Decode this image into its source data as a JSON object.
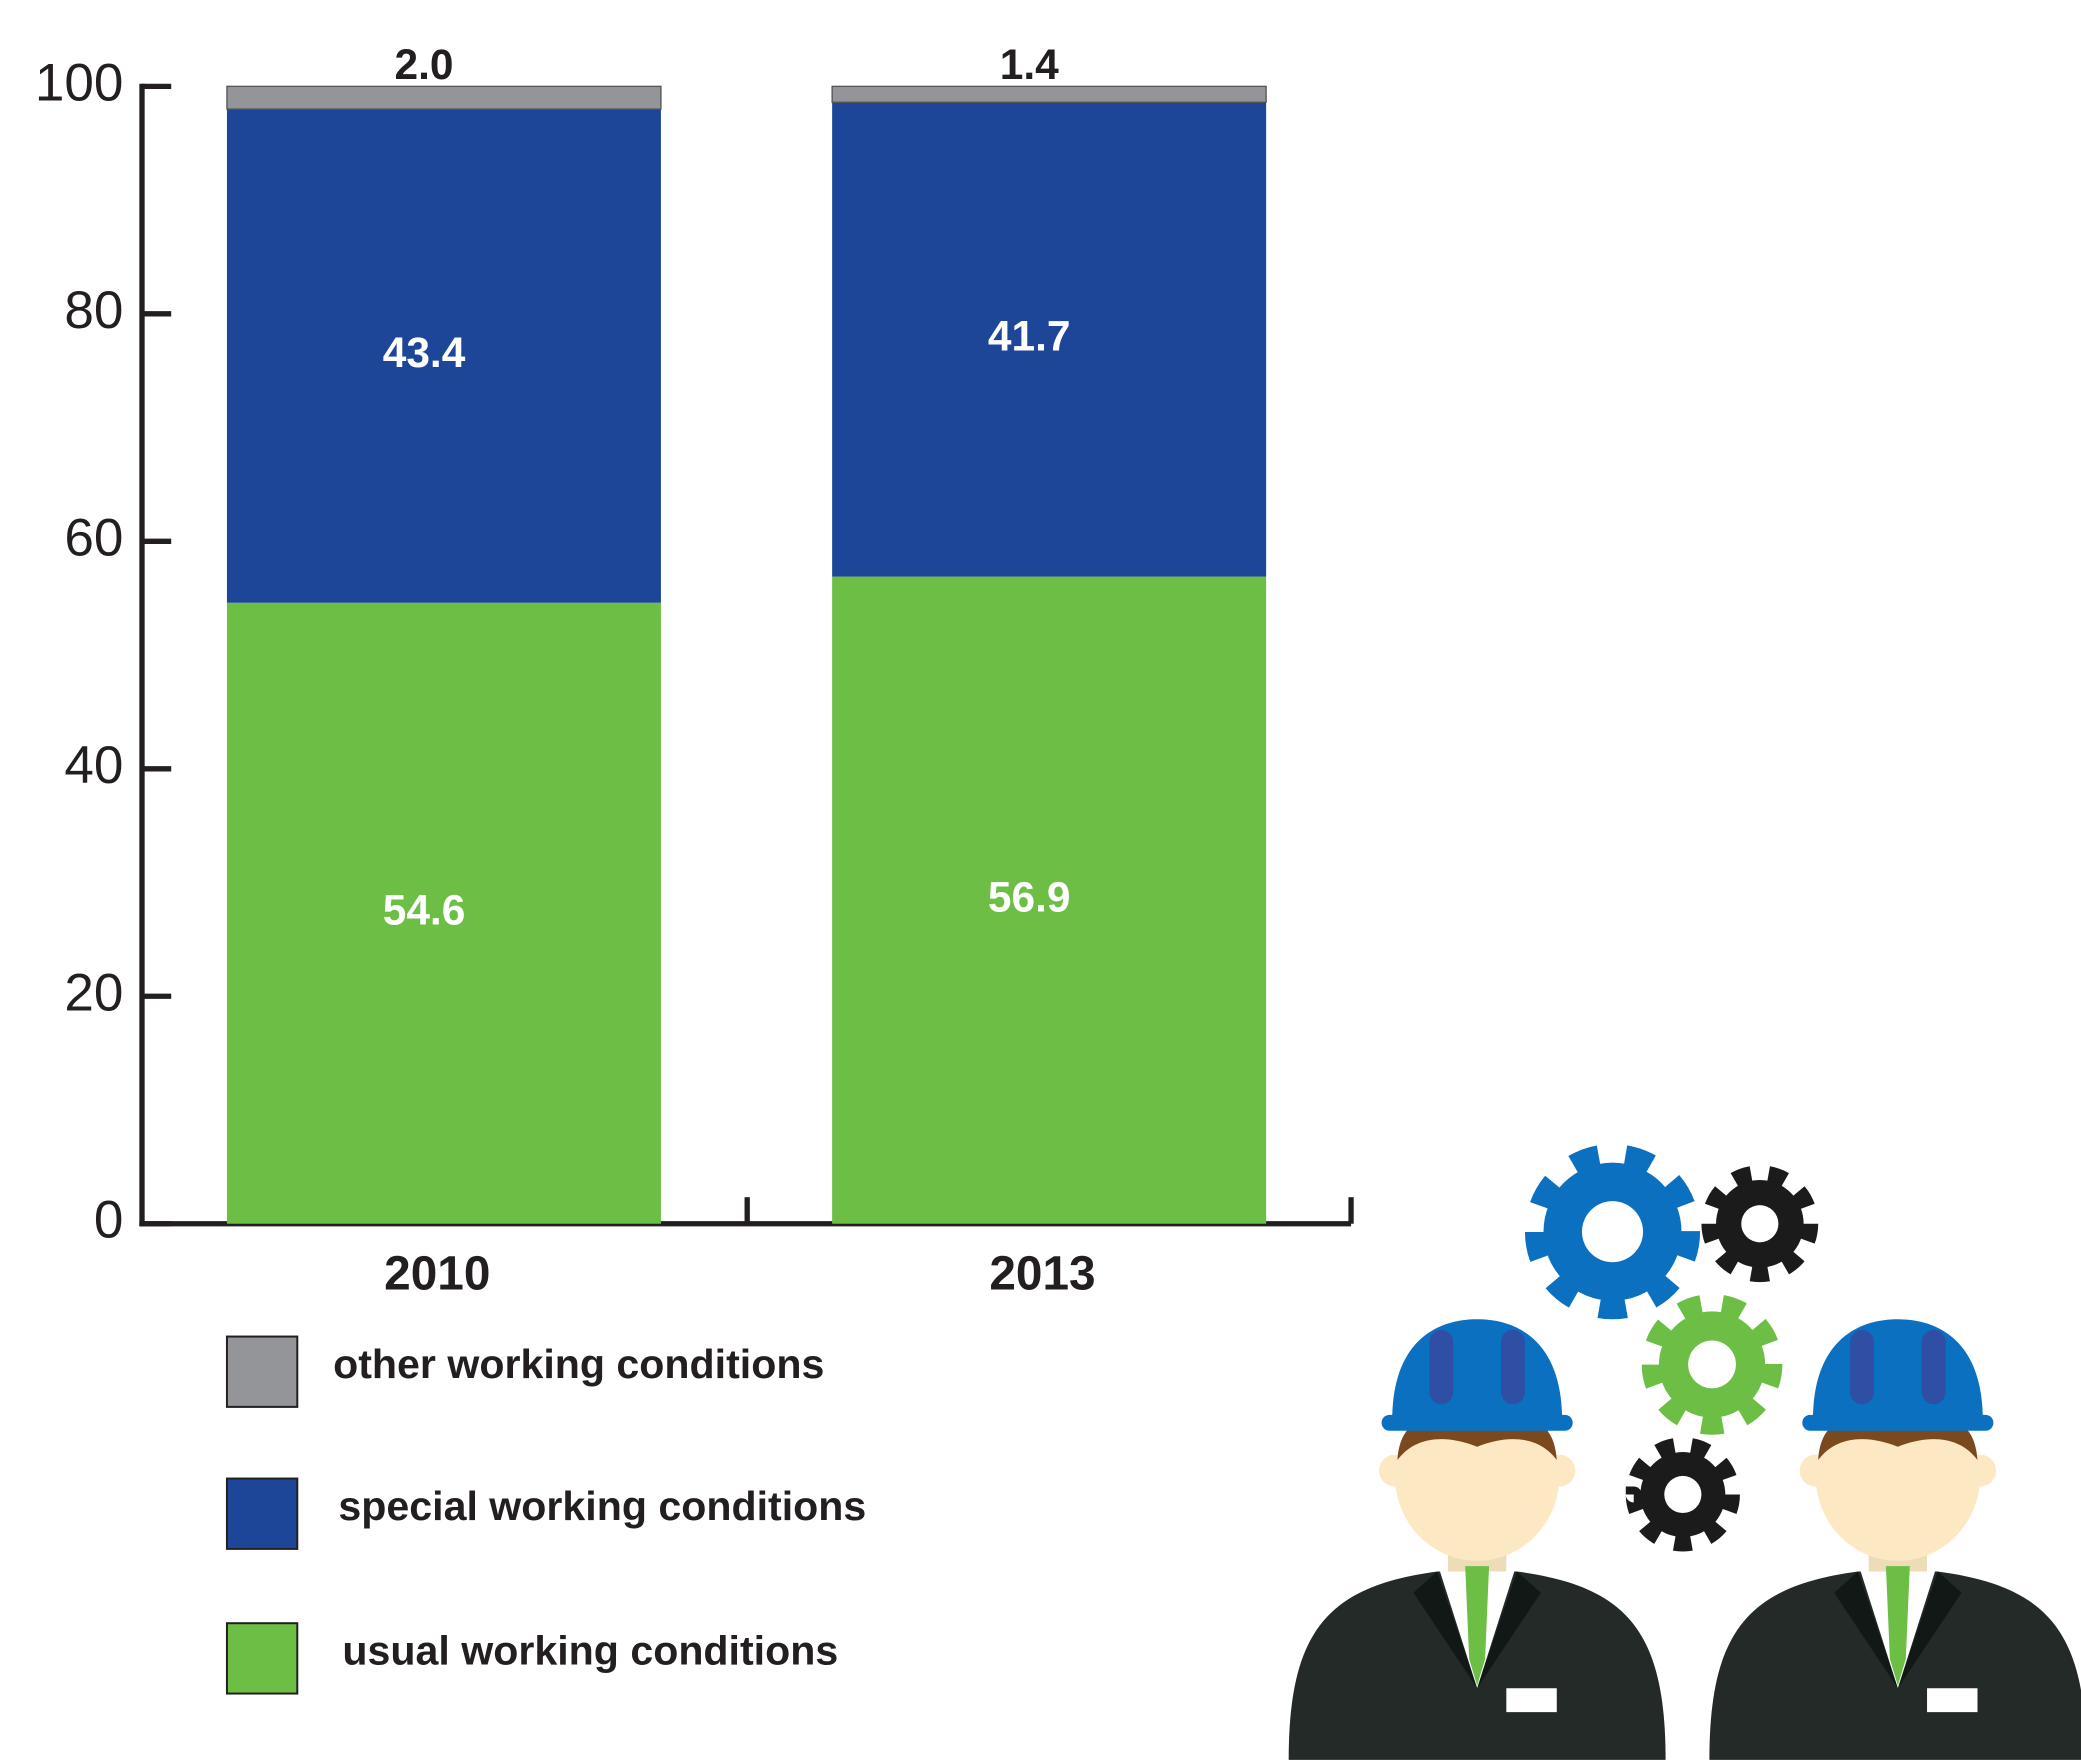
{
  "chart_data": {
    "type": "stacked_bar",
    "categories": [
      "2010",
      "2013"
    ],
    "series": [
      {
        "name": "usual working conditions",
        "color": "#6dbe45",
        "values": [
          54.6,
          56.9
        ]
      },
      {
        "name": "special working conditions",
        "color": "#1d4699",
        "values": [
          43.4,
          41.7
        ]
      },
      {
        "name": "other working conditions",
        "color": "#939598",
        "values": [
          2.0,
          1.4
        ],
        "value_labels": [
          "2.0",
          "1.4"
        ]
      }
    ],
    "ylim": [
      0,
      100
    ],
    "yticks": [
      0,
      20,
      40,
      60,
      80,
      100
    ],
    "grid": false,
    "legend": "bottom"
  }
}
